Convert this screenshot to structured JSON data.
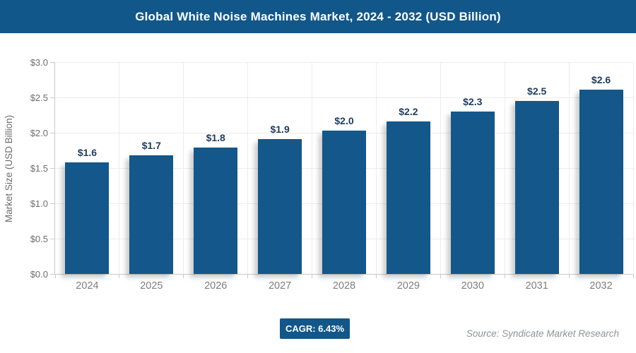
{
  "header": {
    "title": "Global White Noise Machines Market, 2024 - 2032 (USD Billion)"
  },
  "chart_data": {
    "type": "bar",
    "title": "Global White Noise Machines Market, 2024 - 2032 (USD Billion)",
    "categories": [
      "2024",
      "2025",
      "2026",
      "2027",
      "2028",
      "2029",
      "2030",
      "2031",
      "2032"
    ],
    "values": [
      1.6,
      1.7,
      1.8,
      1.9,
      2.0,
      2.2,
      2.3,
      2.5,
      2.6
    ],
    "bar_labels": [
      "$1.6",
      "$1.7",
      "$1.8",
      "$1.9",
      "$2.0",
      "$2.2",
      "$2.3",
      "$2.5",
      "$2.6"
    ],
    "drawn_values": [
      1.58,
      1.68,
      1.79,
      1.91,
      2.03,
      2.16,
      2.3,
      2.45,
      2.61
    ],
    "xlabel": "",
    "ylabel": "Market Size (USD Billion)",
    "ylim": [
      0,
      3.0
    ],
    "ytick_step": 0.5,
    "ytick_labels": [
      "$0.0",
      "$0.5",
      "$1.0",
      "$1.5",
      "$2.0",
      "$2.5",
      "$3.0"
    ],
    "grid": true,
    "legend": "none",
    "bar_color": "#14578a"
  },
  "footer": {
    "cagr_badge": "CAGR: 6.43%",
    "source": "Source: Syndicate Market Research"
  },
  "colors": {
    "brand_blue": "#11578a",
    "bar_fill": "#14578a",
    "value_label": "#1e3c5e",
    "ytick_text": "#6e6e6e",
    "xtick_text": "#7d7d7d",
    "gridline": "#ececec",
    "axis_line": "#c9c9c9",
    "source_text": "#8b9599",
    "title_text": "#ffffff"
  }
}
